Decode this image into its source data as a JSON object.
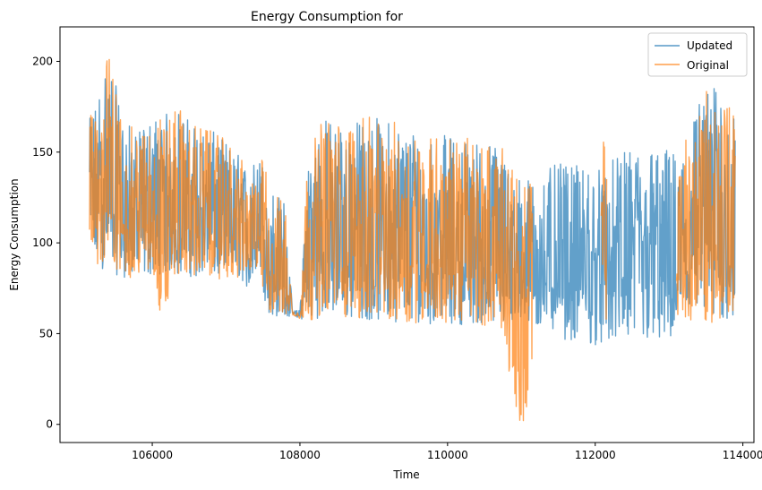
{
  "chart_data": {
    "type": "line",
    "title": "Energy Consumption for",
    "xlabel": "Time",
    "ylabel": "Energy Consumption",
    "xlim": [
      104750,
      114150
    ],
    "ylim": [
      -10,
      219
    ],
    "xticks": [
      106000,
      108000,
      110000,
      112000,
      114000
    ],
    "yticks": [
      0,
      50,
      100,
      150,
      200
    ],
    "grid": false,
    "legend_position": "top-right",
    "series": [
      {
        "name": "Updated",
        "color": "#1f77b4",
        "low": [
          [
            105150,
            92
          ],
          [
            105250,
            86
          ],
          [
            105400,
            84
          ],
          [
            105600,
            81
          ],
          [
            105800,
            80
          ],
          [
            106000,
            82
          ],
          [
            106150,
            83
          ],
          [
            106300,
            82
          ],
          [
            106600,
            81
          ],
          [
            106900,
            80
          ],
          [
            107200,
            80
          ],
          [
            107300,
            74
          ],
          [
            107450,
            82
          ],
          [
            107550,
            62
          ],
          [
            107650,
            59
          ],
          [
            107800,
            58
          ],
          [
            107900,
            60
          ],
          [
            108000,
            58
          ],
          [
            108100,
            57
          ],
          [
            108300,
            59
          ],
          [
            108600,
            58
          ],
          [
            109000,
            57
          ],
          [
            109500,
            56
          ],
          [
            109900,
            55
          ],
          [
            110300,
            55
          ],
          [
            110700,
            54
          ],
          [
            111000,
            54
          ],
          [
            111200,
            53
          ],
          [
            111500,
            49
          ],
          [
            111700,
            44
          ],
          [
            111900,
            44
          ],
          [
            112100,
            43
          ],
          [
            112300,
            45
          ],
          [
            112600,
            45
          ],
          [
            112900,
            44
          ],
          [
            113100,
            44
          ],
          [
            113150,
            56
          ],
          [
            113400,
            56
          ],
          [
            113700,
            56
          ],
          [
            113900,
            56
          ]
        ],
        "high": [
          [
            105150,
            168
          ],
          [
            105250,
            182
          ],
          [
            105400,
            206
          ],
          [
            105600,
            170
          ],
          [
            105800,
            160
          ],
          [
            106000,
            170
          ],
          [
            106150,
            170
          ],
          [
            106300,
            176
          ],
          [
            106600,
            165
          ],
          [
            106900,
            160
          ],
          [
            107200,
            148
          ],
          [
            107300,
            140
          ],
          [
            107450,
            150
          ],
          [
            107550,
            140
          ],
          [
            107650,
            128
          ],
          [
            107800,
            124
          ],
          [
            107900,
            62
          ],
          [
            108000,
            64
          ],
          [
            108100,
            145
          ],
          [
            108300,
            170
          ],
          [
            108600,
            166
          ],
          [
            109000,
            170
          ],
          [
            109500,
            165
          ],
          [
            109900,
            160
          ],
          [
            110300,
            158
          ],
          [
            110700,
            155
          ],
          [
            111000,
            135
          ],
          [
            111200,
            137
          ],
          [
            111500,
            144
          ],
          [
            111700,
            142
          ],
          [
            111900,
            144
          ],
          [
            112100,
            142
          ],
          [
            112300,
            148
          ],
          [
            112600,
            154
          ],
          [
            112900,
            154
          ],
          [
            113100,
            150
          ],
          [
            113150,
            150
          ],
          [
            113400,
            180
          ],
          [
            113700,
            190
          ],
          [
            113900,
            167
          ]
        ]
      },
      {
        "name": "Original",
        "color": "#ff7f0e",
        "low": [
          [
            105150,
            92
          ],
          [
            105250,
            86
          ],
          [
            105400,
            84
          ],
          [
            105600,
            81
          ],
          [
            105800,
            80
          ],
          [
            106000,
            82
          ],
          [
            106150,
            52
          ],
          [
            106300,
            82
          ],
          [
            106600,
            81
          ],
          [
            106900,
            80
          ],
          [
            107200,
            80
          ],
          [
            107300,
            82
          ],
          [
            107450,
            82
          ],
          [
            107550,
            62
          ],
          [
            107650,
            59
          ],
          [
            107800,
            58
          ],
          [
            107900,
            60
          ],
          [
            108000,
            58
          ],
          [
            108100,
            57
          ],
          [
            108300,
            59
          ],
          [
            108600,
            58
          ],
          [
            109000,
            57
          ],
          [
            109500,
            56
          ],
          [
            109900,
            55
          ],
          [
            110300,
            55
          ],
          [
            110700,
            54
          ],
          [
            110980,
            0
          ],
          [
            111150,
            null
          ],
          [
            112080,
            57
          ],
          [
            112120,
            57
          ],
          [
            112160,
            null
          ],
          [
            113100,
            56
          ],
          [
            113150,
            56
          ],
          [
            113400,
            56
          ],
          [
            113700,
            56
          ],
          [
            113900,
            56
          ]
        ],
        "high": [
          [
            105150,
            168
          ],
          [
            105250,
            182
          ],
          [
            105400,
            206
          ],
          [
            105600,
            170
          ],
          [
            105800,
            160
          ],
          [
            106000,
            170
          ],
          [
            106150,
            170
          ],
          [
            106300,
            176
          ],
          [
            106600,
            165
          ],
          [
            106900,
            160
          ],
          [
            107200,
            148
          ],
          [
            107300,
            128
          ],
          [
            107450,
            150
          ],
          [
            107550,
            140
          ],
          [
            107650,
            128
          ],
          [
            107800,
            124
          ],
          [
            107900,
            62
          ],
          [
            108000,
            64
          ],
          [
            108100,
            145
          ],
          [
            108300,
            170
          ],
          [
            108600,
            166
          ],
          [
            109000,
            170
          ],
          [
            109500,
            165
          ],
          [
            109900,
            160
          ],
          [
            110300,
            158
          ],
          [
            110700,
            155
          ],
          [
            110980,
            135
          ],
          [
            111150,
            null
          ],
          [
            112080,
            150
          ],
          [
            112120,
            162
          ],
          [
            112160,
            null
          ],
          [
            113100,
            130
          ],
          [
            113150,
            150
          ],
          [
            113400,
            180
          ],
          [
            113700,
            190
          ],
          [
            113900,
            167
          ]
        ]
      }
    ]
  }
}
